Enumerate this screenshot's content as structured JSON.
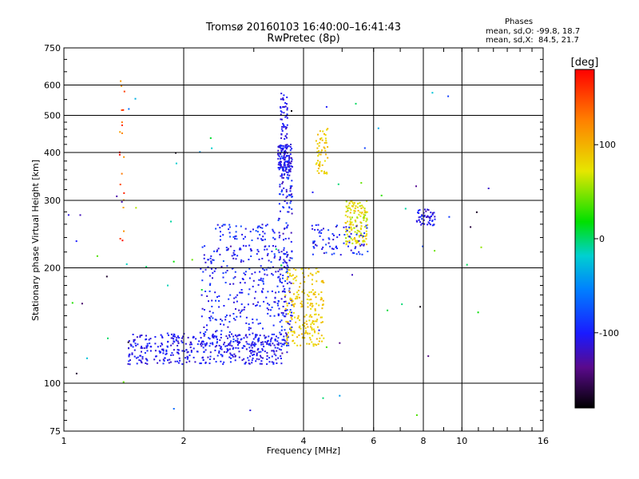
{
  "header": {
    "title_line1": "Tromsø 20160103 16:40:00–16:41:43",
    "title_line2": "RwPretec (8p)",
    "stats_title": "Phases",
    "stats_o": "mean, sd,O: -99.8, 18.7",
    "stats_x": "mean, sd,X:  84.5, 21.7"
  },
  "colorbar": {
    "label": "[deg]",
    "ticks": [
      {
        "value": 100,
        "label": "100"
      },
      {
        "value": 0,
        "label": "0"
      },
      {
        "value": -100,
        "label": "-100"
      }
    ],
    "range": [
      -180,
      180
    ]
  },
  "chart_data": {
    "type": "scatter",
    "xlabel": "Frequency [MHz]",
    "ylabel": "Stationary phase Virtual Height [km]",
    "xscale": "log",
    "yscale": "log",
    "xlim": [
      1,
      16
    ],
    "ylim": [
      75,
      750
    ],
    "xticks": [
      {
        "value": 1,
        "label": "1"
      },
      {
        "value": 2,
        "label": "2"
      },
      {
        "value": 4,
        "label": "4"
      },
      {
        "value": 6,
        "label": "6"
      },
      {
        "value": 8,
        "label": "8"
      },
      {
        "value": 10,
        "label": "10"
      },
      {
        "value": 16,
        "label": "16"
      }
    ],
    "yticks": [
      {
        "value": 75,
        "label": "75"
      },
      {
        "value": 100,
        "label": "100"
      },
      {
        "value": 200,
        "label": "200"
      },
      {
        "value": 300,
        "label": "300"
      },
      {
        "value": 400,
        "label": "400"
      },
      {
        "value": 500,
        "label": "500"
      },
      {
        "value": 600,
        "label": "600"
      },
      {
        "value": 750,
        "label": "750"
      }
    ],
    "grid_x": [
      2,
      4,
      6,
      8,
      10
    ],
    "grid_y": [
      100,
      200,
      300,
      400,
      500,
      600
    ],
    "clusters": [
      {
        "region": "E-trace low",
        "x_range": [
          1.45,
          3.6
        ],
        "y_range": [
          112,
          135
        ],
        "phase": -105,
        "spread": 15,
        "count": 420
      },
      {
        "region": "F-rise",
        "x_range": [
          2.2,
          3.7
        ],
        "y_range": [
          125,
          230
        ],
        "phase": -100,
        "spread": 20,
        "count": 330
      },
      {
        "region": "F-ramp",
        "x_range": [
          2.4,
          3.4
        ],
        "y_range": [
          235,
          260
        ],
        "phase": -95,
        "spread": 20,
        "count": 55
      },
      {
        "region": "F-vertical",
        "x_range": [
          3.45,
          3.75
        ],
        "y_range": [
          125,
          360
        ],
        "phase": -100,
        "spread": 25,
        "count": 150
      },
      {
        "region": "F-top",
        "x_range": [
          3.45,
          3.75
        ],
        "y_range": [
          355,
          420
        ],
        "phase": -105,
        "spread": 20,
        "count": 130
      },
      {
        "region": "F-spike",
        "x_range": [
          3.5,
          3.65
        ],
        "y_range": [
          430,
          580
        ],
        "phase": -110,
        "spread": 15,
        "count": 45
      },
      {
        "region": "X-low",
        "x_range": [
          3.6,
          4.5
        ],
        "y_range": [
          125,
          200
        ],
        "phase": 85,
        "spread": 15,
        "count": 210
      },
      {
        "region": "X-mid",
        "x_range": [
          4.3,
          4.6
        ],
        "y_range": [
          350,
          470
        ],
        "phase": 85,
        "spread": 15,
        "count": 55
      },
      {
        "region": "X-high",
        "x_range": [
          5.1,
          5.8
        ],
        "y_range": [
          230,
          300
        ],
        "phase": 75,
        "spread": 25,
        "count": 140
      },
      {
        "region": "O-mid",
        "x_range": [
          4.2,
          5.8
        ],
        "y_range": [
          215,
          260
        ],
        "phase": -100,
        "spread": 25,
        "count": 80
      },
      {
        "region": "O-high",
        "x_range": [
          7.7,
          8.6
        ],
        "y_range": [
          258,
          285
        ],
        "phase": -110,
        "spread": 20,
        "count": 50
      },
      {
        "region": "left-column",
        "x_range": [
          1.38,
          1.42
        ],
        "y_range": [
          230,
          640
        ],
        "phase": 140,
        "spread": 35,
        "count": 20
      },
      {
        "region": "scatter",
        "x_range": [
          1.0,
          12.0
        ],
        "y_range": [
          78,
          650
        ],
        "phase": -60,
        "spread": 120,
        "count": 70
      }
    ]
  }
}
